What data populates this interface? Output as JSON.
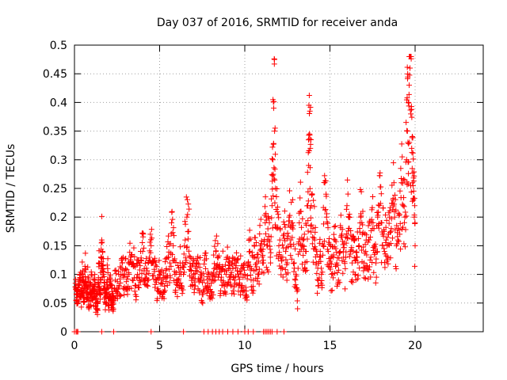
{
  "chart_data": {
    "type": "scatter",
    "title": "Day 037 of 2016, SRMTID for receiver anda",
    "xlabel": "GPS time / hours",
    "ylabel": "SRMTID / TECUs",
    "xlim": [
      0,
      24
    ],
    "ylim": [
      0,
      0.5
    ],
    "xticks": [
      0,
      5,
      10,
      15,
      20
    ],
    "xtick_labels": [
      "0",
      "5",
      "10",
      "15",
      "20"
    ],
    "yticks": [
      0,
      0.05,
      0.1,
      0.15,
      0.2,
      0.25,
      0.3,
      0.35,
      0.4,
      0.45,
      0.5
    ],
    "ytick_labels": [
      "0",
      "0.05",
      "0.1",
      "0.15",
      "0.2",
      "0.25",
      "0.3",
      "0.35",
      "0.4",
      "0.45",
      "0.5"
    ],
    "grid": true,
    "marker": "+",
    "color": "#ff0000",
    "series": [
      {
        "name": "SRMTID",
        "points": [
          [
            0.05,
            0.078
          ],
          [
            0.1,
            0.055
          ],
          [
            0.15,
            0.06
          ],
          [
            0.2,
            0.05
          ],
          [
            0.25,
            0.082
          ],
          [
            0.3,
            0.07
          ],
          [
            0.35,
            0.09
          ],
          [
            0.4,
            0.06
          ],
          [
            0.45,
            0.1
          ],
          [
            0.5,
            0.075
          ],
          [
            0.55,
            0.065
          ],
          [
            0.6,
            0.085
          ],
          [
            0.65,
            0.11
          ],
          [
            0.7,
            0.058
          ],
          [
            0.75,
            0.07
          ],
          [
            0.8,
            0.095
          ],
          [
            0.85,
            0.04
          ],
          [
            0.9,
            0.08
          ],
          [
            0.95,
            0.065
          ],
          [
            1.0,
            0.1
          ],
          [
            1.05,
            0.055
          ],
          [
            1.1,
            0.075
          ],
          [
            1.15,
            0.06
          ],
          [
            1.2,
            0.09
          ],
          [
            1.25,
            0.045
          ],
          [
            1.3,
            0.07
          ],
          [
            1.35,
            0.03
          ],
          [
            1.4,
            0.085
          ],
          [
            1.45,
            0.12
          ],
          [
            1.5,
            0.065
          ],
          [
            1.55,
            0.09
          ],
          [
            1.6,
            0.16
          ],
          [
            1.65,
            0.14
          ],
          [
            1.7,
            0.1
          ],
          [
            1.75,
            0.08
          ],
          [
            1.8,
            0.06
          ],
          [
            1.85,
            0.05
          ],
          [
            1.9,
            0.075
          ],
          [
            1.95,
            0.11
          ],
          [
            2.0,
            0.045
          ],
          [
            2.05,
            0.065
          ],
          [
            2.1,
            0.08
          ],
          [
            2.15,
            0.055
          ],
          [
            2.2,
            0.07
          ],
          [
            2.25,
            0.05
          ],
          [
            2.3,
            0.06
          ],
          [
            2.4,
            0.09
          ],
          [
            2.5,
            0.07
          ],
          [
            2.6,
            0.1
          ],
          [
            2.7,
            0.085
          ],
          [
            2.8,
            0.12
          ],
          [
            2.9,
            0.095
          ],
          [
            3.0,
            0.11
          ],
          [
            3.1,
            0.075
          ],
          [
            3.2,
            0.1
          ],
          [
            3.3,
            0.13
          ],
          [
            3.4,
            0.09
          ],
          [
            3.5,
            0.115
          ],
          [
            3.6,
            0.08
          ],
          [
            3.7,
            0.1
          ],
          [
            3.8,
            0.095
          ],
          [
            3.9,
            0.125
          ],
          [
            4.0,
            0.14
          ],
          [
            4.1,
            0.11
          ],
          [
            4.2,
            0.1
          ],
          [
            4.3,
            0.09
          ],
          [
            4.4,
            0.13
          ],
          [
            4.5,
            0.15
          ],
          [
            4.6,
            0.12
          ],
          [
            4.7,
            0.105
          ],
          [
            4.8,
            0.09
          ],
          [
            4.9,
            0.075
          ],
          [
            5.0,
            0.1
          ],
          [
            5.1,
            0.085
          ],
          [
            5.2,
            0.07
          ],
          [
            5.3,
            0.095
          ],
          [
            5.4,
            0.11
          ],
          [
            5.5,
            0.13
          ],
          [
            5.6,
            0.12
          ],
          [
            5.7,
            0.19
          ],
          [
            5.8,
            0.15
          ],
          [
            5.9,
            0.1
          ],
          [
            6.0,
            0.085
          ],
          [
            6.1,
            0.09
          ],
          [
            6.2,
            0.12
          ],
          [
            6.3,
            0.08
          ],
          [
            6.4,
            0.1
          ],
          [
            6.5,
            0.16
          ],
          [
            6.6,
            0.2
          ],
          [
            6.7,
            0.175
          ],
          [
            6.8,
            0.13
          ],
          [
            6.9,
            0.095
          ],
          [
            7.0,
            0.1
          ],
          [
            7.1,
            0.08
          ],
          [
            7.2,
            0.12
          ],
          [
            7.3,
            0.09
          ],
          [
            7.4,
            0.1
          ],
          [
            7.5,
            0.065
          ],
          [
            7.6,
            0.09
          ],
          [
            7.7,
            0.11
          ],
          [
            7.8,
            0.085
          ],
          [
            7.9,
            0.1
          ],
          [
            8.0,
            0.07
          ],
          [
            8.1,
            0.09
          ],
          [
            8.2,
            0.11
          ],
          [
            8.3,
            0.14
          ],
          [
            8.4,
            0.13
          ],
          [
            8.5,
            0.1
          ],
          [
            8.6,
            0.09
          ],
          [
            8.7,
            0.11
          ],
          [
            8.8,
            0.08
          ],
          [
            8.9,
            0.1
          ],
          [
            9.0,
            0.13
          ],
          [
            9.1,
            0.095
          ],
          [
            9.2,
            0.08
          ],
          [
            9.3,
            0.11
          ],
          [
            9.4,
            0.09
          ],
          [
            9.5,
            0.12
          ],
          [
            9.6,
            0.1
          ],
          [
            9.7,
            0.085
          ],
          [
            9.8,
            0.11
          ],
          [
            9.9,
            0.095
          ],
          [
            10.0,
            0.1
          ],
          [
            10.1,
            0.06
          ],
          [
            10.2,
            0.12
          ],
          [
            10.3,
            0.14
          ],
          [
            10.4,
            0.11
          ],
          [
            10.5,
            0.09
          ],
          [
            10.6,
            0.13
          ],
          [
            10.7,
            0.12
          ],
          [
            10.8,
            0.1
          ],
          [
            10.9,
            0.15
          ],
          [
            11.0,
            0.14
          ],
          [
            11.1,
            0.12
          ],
          [
            11.2,
            0.19
          ],
          [
            11.3,
            0.15
          ],
          [
            11.4,
            0.16
          ],
          [
            11.5,
            0.13
          ],
          [
            11.6,
            0.22
          ],
          [
            11.65,
            0.3
          ],
          [
            11.7,
            0.39
          ],
          [
            11.75,
            0.35
          ],
          [
            11.8,
            0.25
          ],
          [
            11.9,
            0.18
          ],
          [
            12.0,
            0.15
          ],
          [
            12.1,
            0.13
          ],
          [
            12.2,
            0.11
          ],
          [
            12.3,
            0.17
          ],
          [
            12.4,
            0.14
          ],
          [
            12.5,
            0.12
          ],
          [
            12.6,
            0.2
          ],
          [
            12.7,
            0.16
          ],
          [
            12.8,
            0.19
          ],
          [
            12.9,
            0.12
          ],
          [
            13.0,
            0.1
          ],
          [
            13.1,
            0.04
          ],
          [
            13.2,
            0.19
          ],
          [
            13.3,
            0.21
          ],
          [
            13.4,
            0.15
          ],
          [
            13.5,
            0.17
          ],
          [
            13.6,
            0.14
          ],
          [
            13.7,
            0.22
          ],
          [
            13.75,
            0.29
          ],
          [
            13.8,
            0.345
          ],
          [
            13.85,
            0.32
          ],
          [
            13.9,
            0.22
          ],
          [
            14.0,
            0.18
          ],
          [
            14.1,
            0.16
          ],
          [
            14.2,
            0.12
          ],
          [
            14.3,
            0.08
          ],
          [
            14.4,
            0.13
          ],
          [
            14.5,
            0.1
          ],
          [
            14.6,
            0.15
          ],
          [
            14.7,
            0.26
          ],
          [
            14.8,
            0.2
          ],
          [
            14.9,
            0.14
          ],
          [
            15.0,
            0.12
          ],
          [
            15.1,
            0.1
          ],
          [
            15.2,
            0.13
          ],
          [
            15.3,
            0.16
          ],
          [
            15.4,
            0.12
          ],
          [
            15.5,
            0.09
          ],
          [
            15.6,
            0.14
          ],
          [
            15.7,
            0.17
          ],
          [
            15.8,
            0.13
          ],
          [
            15.9,
            0.11
          ],
          [
            16.0,
            0.22
          ],
          [
            16.1,
            0.18
          ],
          [
            16.2,
            0.14
          ],
          [
            16.3,
            0.12
          ],
          [
            16.4,
            0.16
          ],
          [
            16.5,
            0.1
          ],
          [
            16.6,
            0.13
          ],
          [
            16.7,
            0.15
          ],
          [
            16.8,
            0.2
          ],
          [
            16.9,
            0.17
          ],
          [
            17.0,
            0.12
          ],
          [
            17.1,
            0.14
          ],
          [
            17.2,
            0.11
          ],
          [
            17.3,
            0.16
          ],
          [
            17.4,
            0.13
          ],
          [
            17.5,
            0.18
          ],
          [
            17.6,
            0.15
          ],
          [
            17.7,
            0.12
          ],
          [
            17.8,
            0.2
          ],
          [
            17.9,
            0.22
          ],
          [
            18.0,
            0.19
          ],
          [
            18.1,
            0.17
          ],
          [
            18.2,
            0.14
          ],
          [
            18.3,
            0.16
          ],
          [
            18.4,
            0.13
          ],
          [
            18.5,
            0.2
          ],
          [
            18.6,
            0.18
          ],
          [
            18.7,
            0.23
          ],
          [
            18.8,
            0.2
          ],
          [
            18.9,
            0.15
          ],
          [
            19.0,
            0.18
          ],
          [
            19.1,
            0.17
          ],
          [
            19.2,
            0.26
          ],
          [
            19.3,
            0.22
          ],
          [
            19.4,
            0.2
          ],
          [
            19.5,
            0.3
          ],
          [
            19.55,
            0.35
          ],
          [
            19.6,
            0.4
          ],
          [
            19.65,
            0.43
          ],
          [
            19.7,
            0.46
          ],
          [
            19.75,
            0.38
          ],
          [
            19.8,
            0.32
          ],
          [
            19.85,
            0.26
          ],
          [
            19.9,
            0.23
          ],
          [
            19.95,
            0.2
          ],
          [
            20.0,
            0.15
          ]
        ],
        "zero_points": [
          0.0,
          0.1,
          0.15,
          0.2,
          1.6,
          2.3,
          4.5,
          6.4,
          7.6,
          7.85,
          8.1,
          8.3,
          8.5,
          8.7,
          9.0,
          9.3,
          9.6,
          10.0,
          10.2,
          10.5,
          11.1,
          11.2,
          11.3,
          11.4,
          11.5,
          11.6,
          11.9,
          12.3
        ]
      }
    ]
  }
}
